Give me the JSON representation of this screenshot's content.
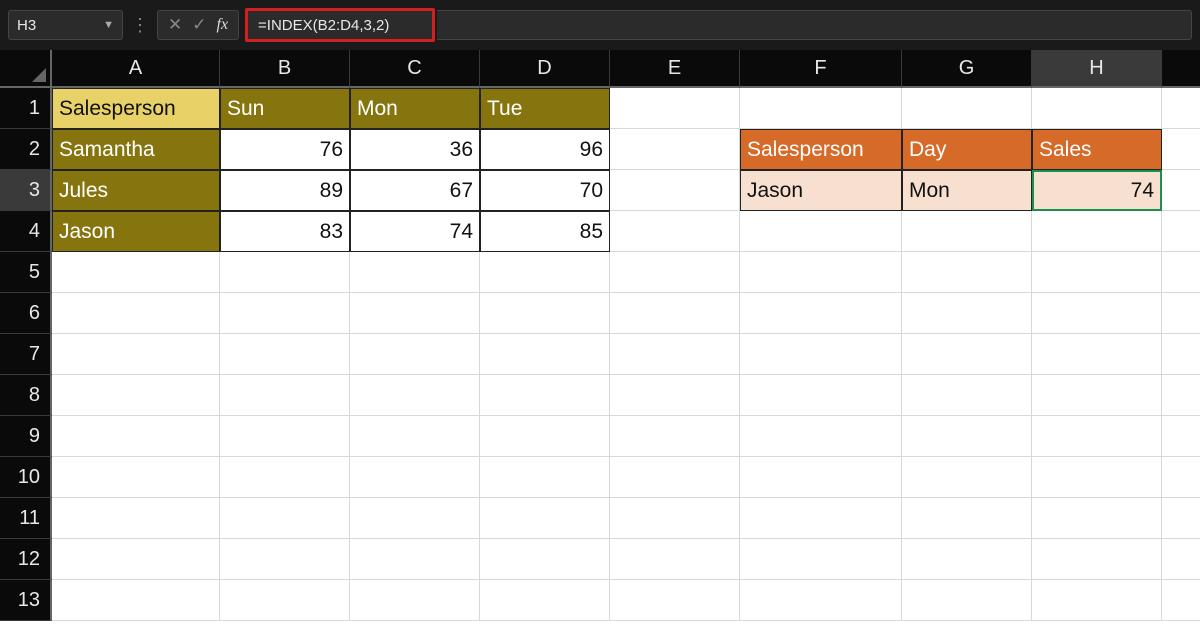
{
  "nameBox": "H3",
  "formula": "=INDEX(B2:D4,3,2)",
  "columns": [
    "A",
    "B",
    "C",
    "D",
    "E",
    "F",
    "G",
    "H"
  ],
  "activeCol": "H",
  "activeRow": 3,
  "rows": [
    1,
    2,
    3,
    4,
    5,
    6,
    7,
    8,
    9,
    10,
    11,
    12,
    13
  ],
  "table1": {
    "header": [
      "Salesperson",
      "Sun",
      "Mon",
      "Tue"
    ],
    "rows": [
      [
        "Samantha",
        76,
        36,
        96
      ],
      [
        "Jules",
        89,
        67,
        70
      ],
      [
        "Jason",
        83,
        74,
        85
      ]
    ]
  },
  "lookup": {
    "header": [
      "Salesperson",
      "Day",
      "Sales"
    ],
    "row": [
      "Jason",
      "Mon",
      74
    ]
  },
  "colors": {
    "formulaBarBg": "#1a1a1a",
    "highlightBorder": "#d02020",
    "olive": "#86750e",
    "gold": "#e8d268",
    "orange": "#d66a28",
    "peach": "#f8e0d0",
    "selectedBorder": "#1a9050"
  }
}
